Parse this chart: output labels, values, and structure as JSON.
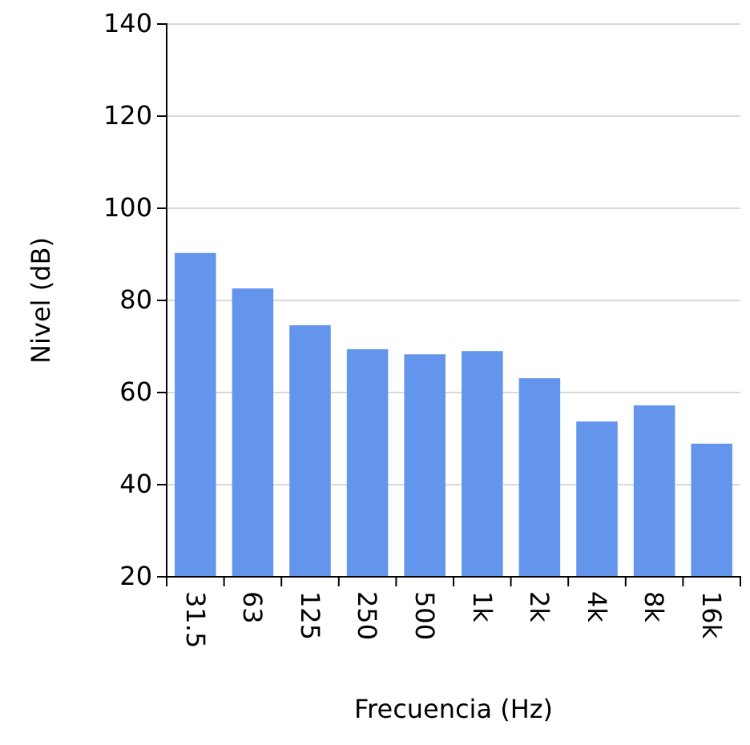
{
  "chart_data": {
    "type": "bar",
    "xlabel": "Frecuencia (Hz)",
    "ylabel": "Nivel (dB)",
    "categories": [
      "31.5",
      "63",
      "125",
      "250",
      "500",
      "1k",
      "2k",
      "4k",
      "8k",
      "16k"
    ],
    "values": [
      90.3,
      82.6,
      74.6,
      69.4,
      68.3,
      69,
      63.1,
      53.7,
      57.2,
      48.9
    ],
    "color": "#6495ed",
    "ylim": [
      20,
      140
    ],
    "yticks": [
      20,
      40,
      60,
      80,
      100,
      120,
      140
    ],
    "grid": "y"
  }
}
